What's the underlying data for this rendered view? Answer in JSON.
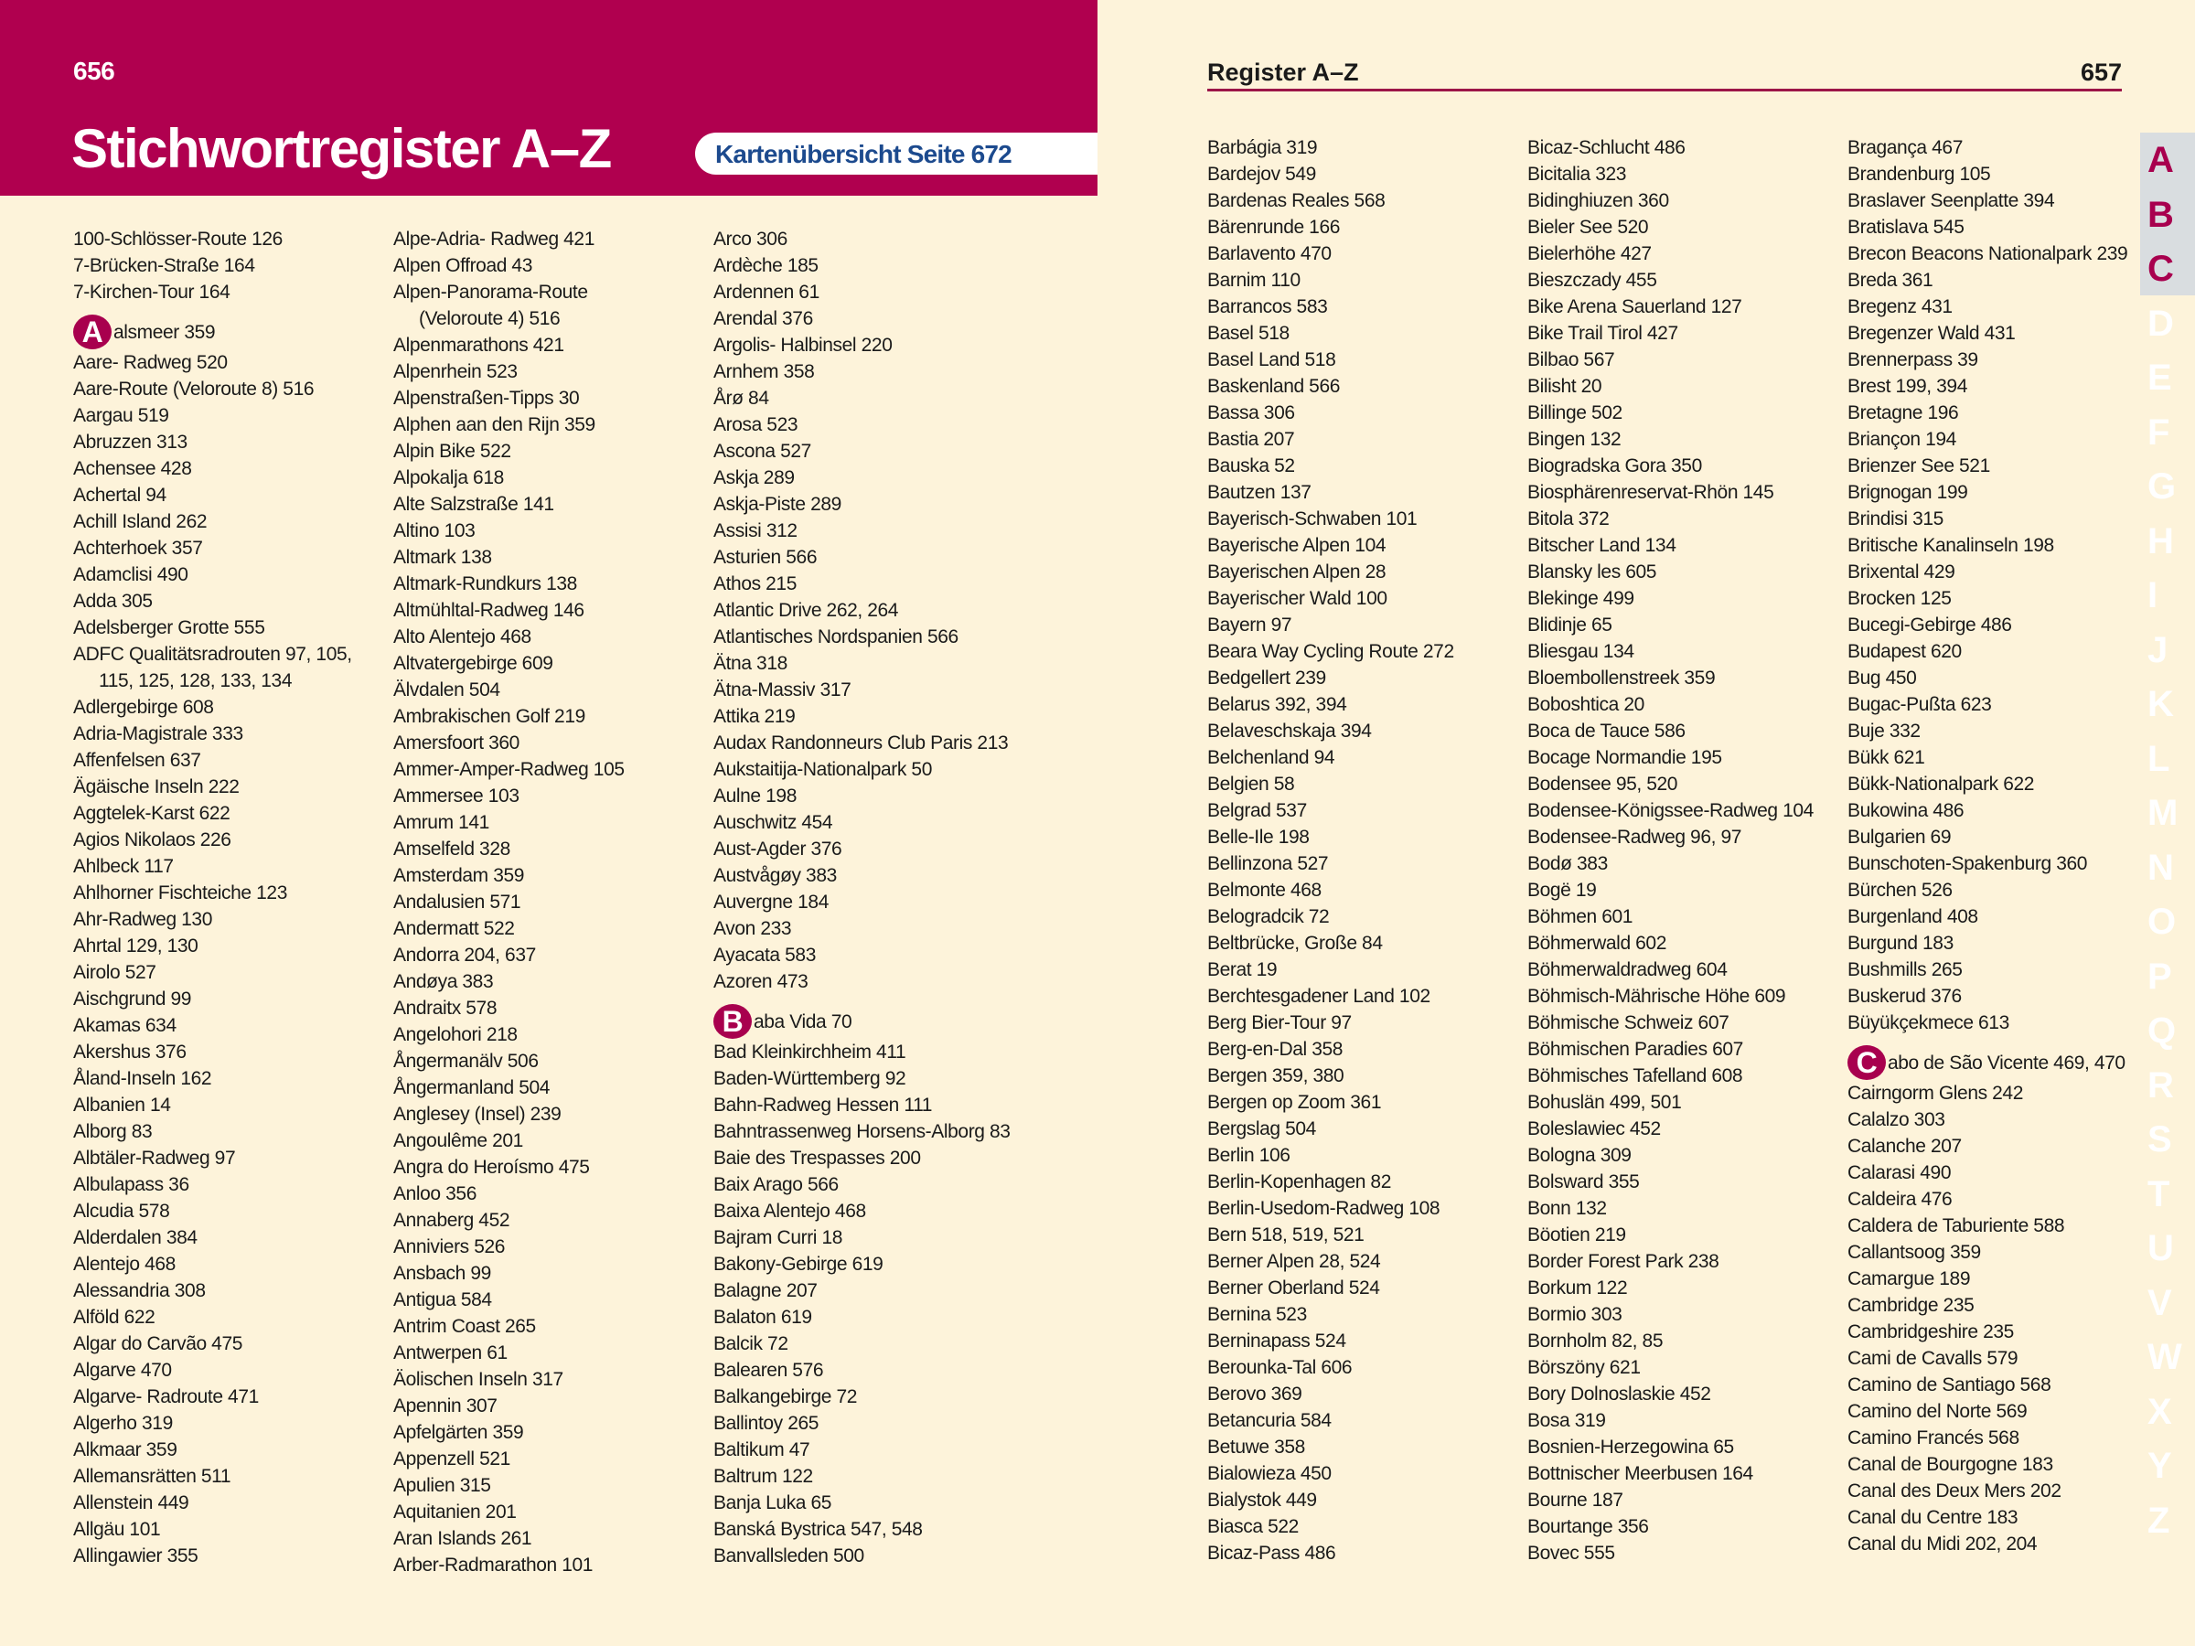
{
  "left_page": {
    "page_number": "656",
    "title": "Stichwortregister A–Z",
    "map_note": "Kartenübersicht Seite 672",
    "columns": [
      [
        "100-Schlösser-Route 126",
        "7-Brücken-Straße 164",
        "7-Kirchen-Tour 164",
        {
          "letter": "A",
          "text": "alsmeer 359"
        },
        "Aare- Radweg 520",
        "Aare-Route (Veloroute 8) 516",
        "Aargau 519",
        "Abruzzen 313",
        "Achensee 428",
        "Achertal 94",
        "Achill Island 262",
        "Achterhoek 357",
        "Adamclisi 490",
        "Adda 305",
        "Adelsberger Grotte 555",
        "ADFC Qualitätsradrouten 97, 105,\n115, 125, 128, 133, 134",
        "Adlergebirge 608",
        "Adria-Magistrale 333",
        "Affenfelsen 637",
        "Ägäische Inseln 222",
        "Aggtelek-Karst 622",
        "Agios Nikolaos 226",
        "Ahlbeck 117",
        "Ahlhorner Fischteiche 123",
        "Ahr-Radweg 130",
        "Ahrtal 129, 130",
        "Airolo 527",
        "Aischgrund 99",
        "Akamas 634",
        "Akershus 376",
        "Åland-Inseln 162",
        "Albanien 14",
        "Alborg 83",
        "Albtäler-Radweg 97",
        "Albulapass 36",
        "Alcudia 578",
        "Alderdalen 384",
        "Alentejo 468",
        "Alessandria 308",
        "Alföld 622",
        "Algar do Carvão 475",
        "Algarve 470",
        "Algarve- Radroute 471",
        "Algerho 319",
        "Alkmaar 359",
        "Allemansrätten 511",
        "Allenstein 449",
        "Allgäu 101",
        "Allingawier 355"
      ],
      [
        "Alpe-Adria- Radweg 421",
        "Alpen Offroad 43",
        "Alpen-Panorama-Route\n(Veloroute 4) 516",
        "Alpenmarathons 421",
        "Alpenrhein 523",
        "Alpenstraßen-Tipps 30",
        "Alphen aan den Rijn 359",
        "Alpin Bike 522",
        "Alpokalja 618",
        "Alte Salzstraße 141",
        "Altino 103",
        "Altmark 138",
        "Altmark-Rundkurs 138",
        "Altmühltal-Radweg 146",
        "Alto Alentejo 468",
        "Altvatergebirge 609",
        "Älvdalen 504",
        "Ambrakischen Golf 219",
        "Amersfoort 360",
        "Ammer-Amper-Radweg 105",
        "Ammersee 103",
        "Amrum 141",
        "Amselfeld 328",
        "Amsterdam 359",
        "Andalusien 571",
        "Andermatt 522",
        "Andorra 204, 637",
        "Andøya 383",
        "Andraitx 578",
        "Angelohori 218",
        "Ångermanälv 506",
        "Ångermanland 504",
        "Anglesey (Insel) 239",
        "Angoulême 201",
        "Angra do Heroísmo 475",
        "Anloo 356",
        "Annaberg 452",
        "Anniviers 526",
        "Ansbach 99",
        "Antigua 584",
        "Antrim Coast 265",
        "Antwerpen 61",
        "Äolischen Inseln 317",
        "Apennin 307",
        "Apfelgärten 359",
        "Appenzell 521",
        "Apulien 315",
        "Aquitanien 201",
        "Aran Islands 261",
        "Arber-Radmarathon 101"
      ],
      [
        "Arco 306",
        "Ardèche 185",
        "Ardennen 61",
        "Arendal 376",
        "Argolis- Halbinsel 220",
        "Arnhem 358",
        "Årø 84",
        "Arosa 523",
        "Ascona 527",
        "Askja 289",
        "Askja-Piste 289",
        "Assisi 312",
        "Asturien 566",
        "Athos 215",
        "Atlantic Drive 262, 264",
        "Atlantisches Nordspanien 566",
        "Ätna 318",
        "Ätna-Massiv 317",
        "Attika 219",
        "Audax Randonneurs Club Paris 213",
        "Aukstaitija-Nationalpark 50",
        "Aulne 198",
        "Auschwitz 454",
        "Aust-Agder 376",
        "Austvågøy 383",
        "Auvergne 184",
        "Avon 233",
        "Ayacata 583",
        "Azoren 473",
        {
          "letter": "B",
          "text": "aba Vida 70"
        },
        "Bad Kleinkirchheim 411",
        "Baden-Württemberg 92",
        "Bahn-Radweg Hessen 111",
        "Bahntrassenweg Horsens-Alborg 83",
        "Baie des Trespasses 200",
        "Baix Arago 566",
        "Baixa Alentejo 468",
        "Bajram Curri 18",
        "Bakony-Gebirge 619",
        "Balagne 207",
        "Balaton 619",
        "Balcik 72",
        "Balearen 576",
        "Balkangebirge 72",
        "Ballintoy 265",
        "Baltikum 47",
        "Baltrum 122",
        "Banja Luka 65",
        "Banská Bystrica 547, 548",
        "Banvallsleden 500"
      ]
    ]
  },
  "right_page": {
    "header": "Register A–Z",
    "page_number": "657",
    "columns": [
      [
        "Barbágia 319",
        "Bardejov 549",
        "Bardenas Reales 568",
        "Bärenrunde 166",
        "Barlavento 470",
        "Barnim 110",
        "Barrancos 583",
        "Basel 518",
        "Basel Land 518",
        "Baskenland 566",
        "Bassa 306",
        "Bastia 207",
        "Bauska 52",
        "Bautzen 137",
        "Bayerisch-Schwaben 101",
        "Bayerische Alpen 104",
        "Bayerischen Alpen 28",
        "Bayerischer Wald 100",
        "Bayern 97",
        "Beara Way Cycling Route 272",
        "Bedgellert 239",
        "Belarus 392, 394",
        "Belaveschskaja 394",
        "Belchenland 94",
        "Belgien 58",
        "Belgrad 537",
        "Belle-Ile 198",
        "Bellinzona 527",
        "Belmonte 468",
        "Belogradcik 72",
        "Beltbrücke, Große 84",
        "Berat 19",
        "Berchtesgadener Land 102",
        "Berg Bier-Tour 97",
        "Berg-en-Dal 358",
        "Bergen 359, 380",
        "Bergen op Zoom 361",
        "Bergslag 504",
        "Berlin 106",
        "Berlin-Kopenhagen 82",
        "Berlin-Usedom-Radweg 108",
        "Bern 518, 519, 521",
        "Berner Alpen 28, 524",
        "Berner Oberland 524",
        "Bernina 523",
        "Berninapass 524",
        "Berounka-Tal 606",
        "Berovo 369",
        "Betancuria 584",
        "Betuwe 358",
        "Bialowieza 450",
        "Bialystok 449",
        "Biasca 522",
        "Bicaz-Pass 486"
      ],
      [
        "Bicaz-Schlucht 486",
        "Bicitalia 323",
        "Bidinghiuzen 360",
        "Bieler See 520",
        "Bielerhöhe 427",
        "Bieszczady 455",
        "Bike Arena Sauerland 127",
        "Bike Trail Tirol 427",
        "Bilbao 567",
        "Bilisht 20",
        "Billinge 502",
        "Bingen 132",
        "Biogradska Gora 350",
        "Biosphärenreservat-Rhön 145",
        "Bitola 372",
        "Bitscher Land 134",
        "Blansky les 605",
        "Blekinge 499",
        "Blidinje 65",
        "Bliesgau 134",
        "Bloembollenstreek 359",
        "Boboshtica 20",
        "Boca de Tauce 586",
        "Bocage Normandie 195",
        "Bodensee 95, 520",
        "Bodensee-Königssee-Radweg 104",
        "Bodensee-Radweg 96, 97",
        "Bodø 383",
        "Bogë 19",
        "Böhmen 601",
        "Böhmerwald 602",
        "Böhmerwaldradweg 604",
        "Böhmisch-Mährische Höhe 609",
        "Böhmische Schweiz 607",
        "Böhmischen Paradies 607",
        "Böhmisches Tafelland 608",
        "Bohuslän 499, 501",
        "Boleslawiec 452",
        "Bologna 309",
        "Bolsward 355",
        "Bonn 132",
        "Böotien 219",
        "Border Forest Park 238",
        "Borkum 122",
        "Bormio 303",
        "Bornholm 82, 85",
        "Börszöny 621",
        "Bory Dolnoslaskie 452",
        "Bosa 319",
        "Bosnien-Herzegowina 65",
        "Bottnischer Meerbusen 164",
        "Bourne 187",
        "Bourtange 356",
        "Bovec 555"
      ],
      [
        "Bragança 467",
        "Brandenburg 105",
        "Braslaver Seenplatte 394",
        "Bratislava 545",
        "Brecon Beacons Nationalpark 239",
        "Breda 361",
        "Bregenz 431",
        "Bregenzer Wald 431",
        "Brennerpass 39",
        "Brest 199, 394",
        "Bretagne 196",
        "Briançon 194",
        "Brienzer See 521",
        "Brignogan 199",
        "Brindisi 315",
        "Britische Kanalinseln 198",
        "Brixental 429",
        "Brocken 125",
        "Bucegi-Gebirge 486",
        "Budapest 620",
        "Bug 450",
        "Bugac-Pußta 623",
        "Buje 332",
        "Bükk 621",
        "Bükk-Nationalpark 622",
        "Bukowina 486",
        "Bulgarien 69",
        "Bunschoten-Spakenburg 360",
        "Bürchen 526",
        "Burgenland 408",
        "Burgund 183",
        "Bushmills 265",
        "Buskerud 376",
        "Büyükçekmece 613",
        {
          "letter": "C",
          "text": "abo de São Vicente 469, 470"
        },
        "Cairngorm Glens 242",
        "Calalzo 303",
        "Calanche 207",
        "Calarasi 490",
        "Caldeira 476",
        "Caldera de Taburiente 588",
        "Callantsoog 359",
        "Camargue 189",
        "Cambridge 235",
        "Cambridgeshire 235",
        "Cami de Cavalls 579",
        "Camino de Santiago 568",
        "Camino del Norte 569",
        "Camino Francés 568",
        "Canal de Bourgogne 183",
        "Canal des Deux Mers 202",
        "Canal du Centre 183",
        "Canal du Midi 202, 204"
      ]
    ]
  },
  "thumb_index": {
    "letters": [
      "A",
      "B",
      "C",
      "D",
      "E",
      "F",
      "G",
      "H",
      "I",
      "J",
      "K",
      "L",
      "M",
      "N",
      "O",
      "P",
      "Q",
      "R",
      "S",
      "T",
      "U",
      "V",
      "W",
      "X",
      "Y",
      "Z"
    ],
    "active": [
      "A",
      "B",
      "C"
    ]
  },
  "colors": {
    "accent": "#b0004f",
    "map_note_text": "#1c4a8e",
    "background": "#fdf3da",
    "tab_highlight": "#d9dde0"
  }
}
